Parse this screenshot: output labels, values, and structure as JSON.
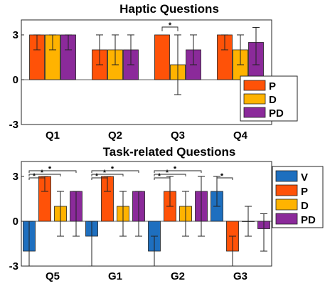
{
  "chart_data": [
    {
      "type": "bar",
      "title": "Haptic Questions",
      "categories": [
        "Q1",
        "Q2",
        "Q3",
        "Q4"
      ],
      "ylim": [
        -3,
        4
      ],
      "yticks": [
        "3",
        "0",
        "-3"
      ],
      "grid": false,
      "legend_position": "bottom-right",
      "series": [
        {
          "name": "P",
          "color": "#FF5208",
          "values": [
            3,
            2,
            3,
            3
          ],
          "error_low": [
            2,
            1,
            3,
            2
          ],
          "error_high": [
            3,
            3,
            3,
            3
          ]
        },
        {
          "name": "D",
          "color": "#FFB300",
          "values": [
            3,
            2,
            1,
            2
          ],
          "error_low": [
            2,
            1,
            -1,
            1
          ],
          "error_high": [
            3,
            3,
            3,
            3
          ]
        },
        {
          "name": "PD",
          "color": "#8B2A9A",
          "values": [
            3,
            2,
            2,
            2.5
          ],
          "error_low": [
            2,
            1,
            1,
            1
          ],
          "error_high": [
            3,
            3,
            3,
            3.5
          ]
        }
      ],
      "significance": [
        {
          "category": "Q3",
          "from": "P",
          "to": "D",
          "label": "*"
        }
      ]
    },
    {
      "type": "bar",
      "title": "Task-related Questions",
      "categories": [
        "Q5",
        "G1",
        "G2",
        "G3"
      ],
      "ylim": [
        -3,
        4
      ],
      "yticks": [
        "3",
        "0",
        "-3"
      ],
      "grid": false,
      "legend_position": "outside-top-right",
      "series": [
        {
          "name": "V",
          "color": "#1E6FBF",
          "values": [
            -2,
            -1,
            -2,
            2
          ],
          "error_low": [
            -3,
            -3,
            -3,
            1
          ],
          "error_high": [
            0,
            0,
            -1,
            3
          ]
        },
        {
          "name": "P",
          "color": "#FF5208",
          "values": [
            3,
            3,
            2,
            -2
          ],
          "error_low": [
            2,
            2,
            1,
            -3
          ],
          "error_high": [
            3,
            3,
            3,
            -1
          ]
        },
        {
          "name": "D",
          "color": "#FFB300",
          "values": [
            1,
            1,
            1,
            0
          ],
          "error_low": [
            -1,
            -1,
            -1,
            -1
          ],
          "error_high": [
            2,
            2,
            2,
            1
          ]
        },
        {
          "name": "PD",
          "color": "#8B2A9A",
          "values": [
            2,
            2,
            2,
            -0.5
          ],
          "error_low": [
            -1,
            -1,
            -1,
            -2
          ],
          "error_high": [
            2,
            2,
            3,
            0.5
          ]
        }
      ],
      "significance": [
        {
          "category": "Q5",
          "from": "V",
          "to": "P",
          "label": "*"
        },
        {
          "category": "Q5",
          "from": "V",
          "to": "D",
          "label": "*"
        },
        {
          "category": "Q5",
          "from": "V",
          "to": "PD",
          "label": "*"
        },
        {
          "category": "G1",
          "from": "V",
          "to": "P",
          "label": "*"
        },
        {
          "category": "G1",
          "from": "V",
          "to": "D",
          "label": "*"
        },
        {
          "category": "G1",
          "from": "V",
          "to": "PD",
          "label": "*"
        },
        {
          "category": "G2",
          "from": "V",
          "to": "P",
          "label": "*"
        },
        {
          "category": "G2",
          "from": "V",
          "to": "D",
          "label": "*"
        },
        {
          "category": "G2",
          "from": "V",
          "to": "PD",
          "label": "*"
        },
        {
          "category": "G3",
          "from": "V",
          "to": "P",
          "label": "*"
        }
      ]
    }
  ]
}
